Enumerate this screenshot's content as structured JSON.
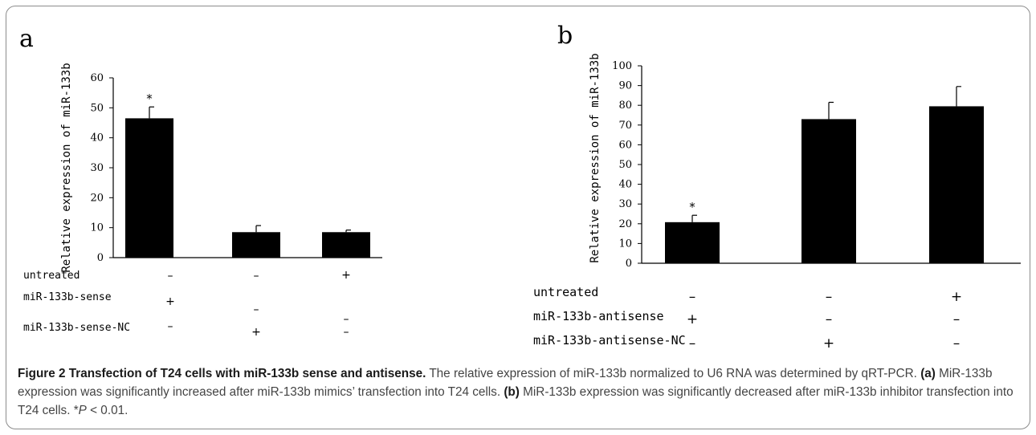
{
  "panels": [
    {
      "letter": "a",
      "ylabel": "Relative expression of miR-133b",
      "yticks": [
        "0",
        "10",
        "20",
        "30",
        "40",
        "50",
        "60"
      ],
      "significance_marker": "*",
      "conditions": [
        {
          "label": "untreated",
          "marks": [
            "–",
            "–",
            "+"
          ]
        },
        {
          "label": "miR-133b-sense",
          "marks": [
            "+",
            "–",
            "–"
          ]
        },
        {
          "label": "miR-133b-sense-NC",
          "marks": [
            "–",
            "+",
            "–"
          ]
        }
      ]
    },
    {
      "letter": "b",
      "ylabel": "Relative expression of miR-133b",
      "yticks": [
        "0",
        "10",
        "20",
        "30",
        "40",
        "50",
        "60",
        "70",
        "80",
        "90",
        "100"
      ],
      "significance_marker": "*",
      "conditions": [
        {
          "label": "untreated",
          "marks": [
            "–",
            "–",
            "+"
          ]
        },
        {
          "label": "miR-133b-antisense",
          "marks": [
            "+",
            "–",
            "–"
          ]
        },
        {
          "label": "miR-133b-antisense-NC",
          "marks": [
            "–",
            "+",
            "–"
          ]
        }
      ]
    }
  ],
  "chart_data": [
    {
      "type": "bar",
      "categories": [
        "1",
        "2",
        "3"
      ],
      "values": [
        46.5,
        8.5,
        8.5
      ],
      "errors": [
        3.8,
        2.2,
        0.7
      ],
      "ylabel": "Relative expression of miR-133b",
      "ylim": [
        0,
        60
      ],
      "significant": [
        true,
        false,
        false
      ],
      "bar_color": "#000000"
    },
    {
      "type": "bar",
      "categories": [
        "1",
        "2",
        "3"
      ],
      "values": [
        20.8,
        73,
        79.5
      ],
      "errors": [
        3.5,
        8.5,
        10
      ],
      "ylabel": "Relative expression of miR-133b",
      "ylim": [
        0,
        100
      ],
      "significant": [
        true,
        false,
        false
      ],
      "bar_color": "#000000"
    }
  ],
  "caption": {
    "title": "Figure 2 Transfection of T24 cells with miR-133b sense and antisense.",
    "text1": " The relative expression of miR-133b normalized to U6 RNA was determined by qRT-PCR. ",
    "label_a": "(a)",
    "text2": " MiR-133b expression was significantly increased after miR-133b mimics’ transfection into T24 cells. ",
    "label_b": "(b)",
    "text3": " MiR-133b expression was significantly decreased after miR-133b inhibitor transfection into T24 cells. *",
    "p_symbol": "P",
    "text4": " < 0.01."
  }
}
